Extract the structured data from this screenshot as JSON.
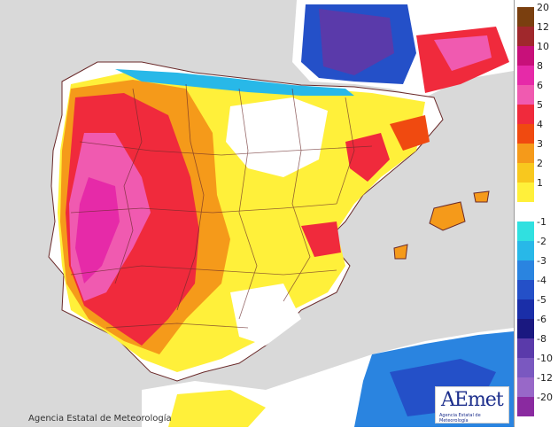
{
  "map": {
    "copyright": "Agencia Estatal de Meteorología",
    "logo_text": "AEmet",
    "logo_subtext": "Agencia Estatal de Meteorología",
    "sea_color": "#d9d9d9"
  },
  "legend": {
    "entries": [
      {
        "label": "20",
        "color": "#7a3f0f"
      },
      {
        "label": "12",
        "color": "#a0282c"
      },
      {
        "label": "10",
        "color": "#c8107a"
      },
      {
        "label": "8",
        "color": "#e62aa8"
      },
      {
        "label": "6",
        "color": "#f05ab0"
      },
      {
        "label": "5",
        "color": "#f02a3c"
      },
      {
        "label": "4",
        "color": "#f04a10"
      },
      {
        "label": "3",
        "color": "#f59a1a"
      },
      {
        "label": "2",
        "color": "#f8c81e"
      },
      {
        "label": "1",
        "color": "#fff03a"
      },
      {
        "label": "",
        "color": "#ffffff"
      },
      {
        "label": "-1",
        "color": "#30e0e0"
      },
      {
        "label": "-2",
        "color": "#28b8e8"
      },
      {
        "label": "-3",
        "color": "#2a84e0"
      },
      {
        "label": "-4",
        "color": "#2450c8"
      },
      {
        "label": "-5",
        "color": "#1a2ea8"
      },
      {
        "label": "-6",
        "color": "#1a1880"
      },
      {
        "label": "-8",
        "color": "#5a3aaa"
      },
      {
        "label": "-10",
        "color": "#7a58c0"
      },
      {
        "label": "-12",
        "color": "#9868c8"
      },
      {
        "label": "-20",
        "color": "#8a2aa0"
      }
    ]
  }
}
